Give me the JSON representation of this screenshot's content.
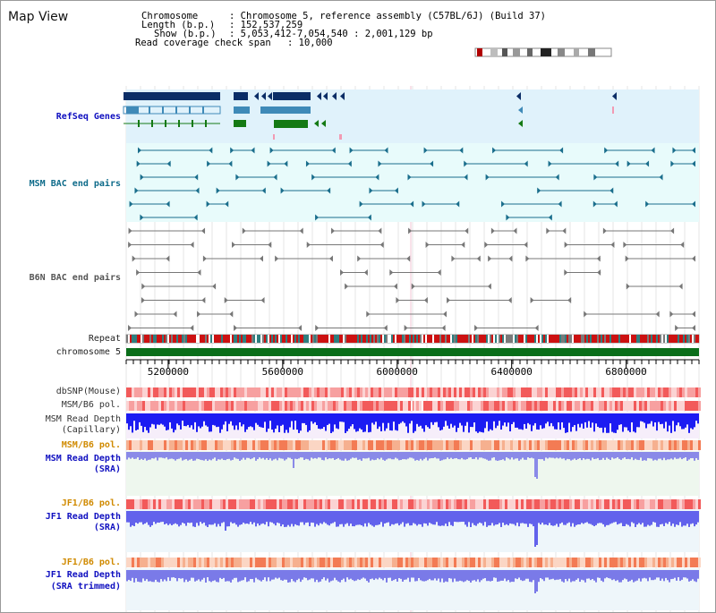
{
  "app": {
    "title": "Map View"
  },
  "info": {
    "chromosome_label": "Chromosome",
    "chromosome_value": ": Chromosome 5, reference assembly (C57BL/6J) (Build 37)",
    "length_label": "Length (b.p.)",
    "length_value": ": 152,537,259",
    "show_label": "Show (b.p.)",
    "show_value": ": 5,053,412-7,054,540 : 2,001,129 bp",
    "coverage_label": "Read coverage check span",
    "coverage_value": ": 10,000"
  },
  "tracks": {
    "refseq": "RefSeq Genes",
    "msm_bac": "MSM BAC end pairs",
    "b6n_bac": "B6N BAC end pairs",
    "repeat": "Repeat",
    "chromosome": "chromosome 5",
    "dbsnp": "dbSNP(Mouse)",
    "msm_b6_pol_1": "MSM/B6 pol.",
    "msm_read_depth_cap_1": "MSM Read Depth",
    "msm_read_depth_cap_2": "(Capillary)",
    "msm_b6_pol_2": "MSM/B6 pol.",
    "msm_read_depth_sra_1": "MSM Read Depth",
    "msm_read_depth_sra_2": "(SRA)",
    "jf1_b6_pol_1": "JF1/B6 pol.",
    "jf1_read_depth_sra_1": "JF1 Read Depth",
    "jf1_read_depth_sra_2": "(SRA)",
    "jf1_b6_pol_2": "JF1/B6 pol.",
    "jf1_read_depth_trim_1": "JF1 Read Depth",
    "jf1_read_depth_trim_2": "(SRA trimmed)"
  },
  "axis": {
    "ticks": [
      {
        "value": 5200000,
        "label": "5200000"
      },
      {
        "value": 5600000,
        "label": "5600000"
      },
      {
        "value": 6000000,
        "label": "6000000"
      },
      {
        "value": 6400000,
        "label": "6400000"
      },
      {
        "value": 6800000,
        "label": "6800000"
      }
    ],
    "range": [
      5053412,
      7054540
    ]
  },
  "colors": {
    "refseq_bg": "#e0f2fb",
    "msm_bg": "#e8fbfb",
    "gene_navy": "#0b2d66",
    "gene_teal": "#3f8ab8",
    "gene_green": "#147a14",
    "msm_teal": "#1a6e8c",
    "b6n_grey": "#777777",
    "chrom_green": "#0a6e1a",
    "title_blue": "#1010c0",
    "label_orange": "#d08a00",
    "label_teal": "#0e6b8a"
  }
}
